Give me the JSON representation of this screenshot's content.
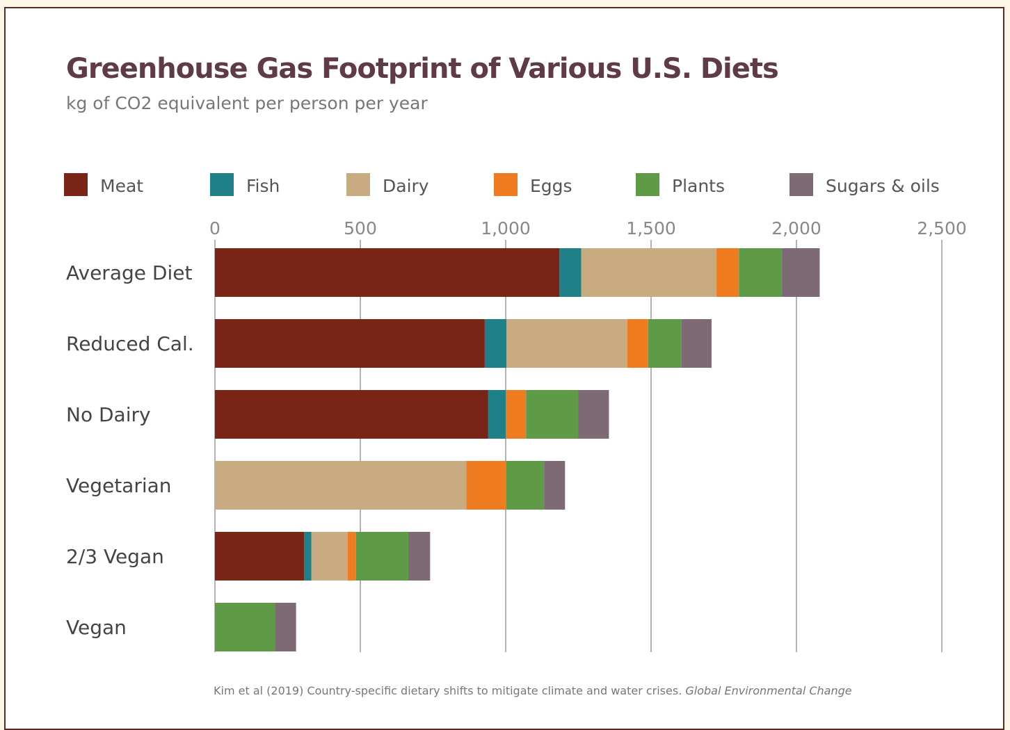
{
  "title": "Greenhouse Gas Footprint of Various U.S. Diets",
  "subtitle": "kg of CO2 equivalent per person per year",
  "source": "Kim et al (2019) Country-specific dietary shifts to mitigate climate and water crises.",
  "source_journal": "Global Environmental Change",
  "colors": {
    "Meat": "#7a2418",
    "Fish": "#1f8088",
    "Dairy": "#c8ab80",
    "Eggs": "#f07c22",
    "Plants": "#5f9a46",
    "Sugars & oils": "#7e6a74"
  },
  "chart_data": {
    "type": "bar",
    "orientation": "horizontal",
    "stacked": true,
    "title": "Greenhouse Gas Footprint of Various U.S. Diets",
    "subtitle": "kg of CO2 equivalent per person per year",
    "xlim": [
      0,
      2500
    ],
    "xticks": [
      0,
      500,
      1000,
      1500,
      2000,
      2500
    ],
    "xtick_labels": [
      "0",
      "500",
      "1,000",
      "1,500",
      "2,000",
      "2,500"
    ],
    "grid": true,
    "legend_position": "top",
    "categories": [
      "Average Diet",
      "Reduced Cal.",
      "No Dairy",
      "Vegetarian",
      "2/3 Vegan",
      "Vegan"
    ],
    "series": [
      {
        "name": "Meat",
        "values": [
          1185,
          928,
          940,
          0,
          307,
          0
        ]
      },
      {
        "name": "Fish",
        "values": [
          75,
          75,
          60,
          0,
          25,
          0
        ]
      },
      {
        "name": "Dairy",
        "values": [
          465,
          415,
          0,
          865,
          125,
          0
        ]
      },
      {
        "name": "Eggs",
        "values": [
          77,
          72,
          70,
          137,
          28,
          0
        ]
      },
      {
        "name": "Plants",
        "values": [
          148,
          115,
          180,
          130,
          180,
          207
        ]
      },
      {
        "name": "Sugars & oils",
        "values": [
          130,
          103,
          105,
          72,
          75,
          72
        ]
      }
    ]
  }
}
